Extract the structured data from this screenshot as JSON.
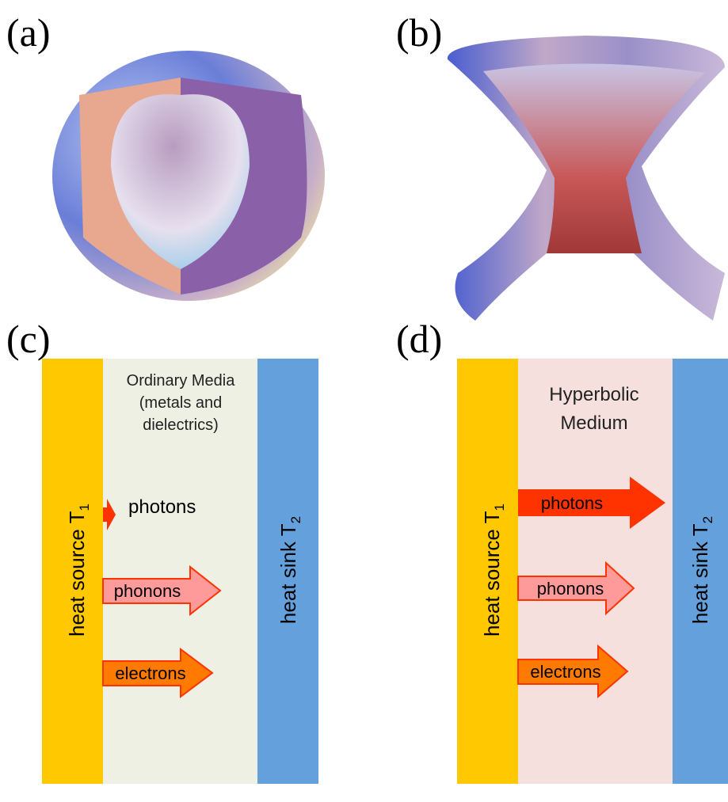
{
  "panels": [
    {
      "label": "(a)"
    },
    {
      "label": "(b)"
    },
    {
      "label": "(c)",
      "medium": [
        "Ordinary Media",
        "(metals and",
        "dielectrics)"
      ],
      "source": {
        "text": "heat source T",
        "subscript": "1"
      },
      "sink": {
        "text": "heat sink T",
        "subscript": "2"
      },
      "arrows": [
        "photons",
        "phonons",
        "electrons"
      ]
    },
    {
      "label": "(d)",
      "medium": [
        "Hyperbolic",
        "Medium"
      ],
      "source": {
        "text": "heat source T",
        "subscript": "1"
      },
      "sink": {
        "text": "heat sink T",
        "subscript": "2"
      },
      "arrows": [
        "photons",
        "phonons",
        "electrons"
      ]
    }
  ]
}
